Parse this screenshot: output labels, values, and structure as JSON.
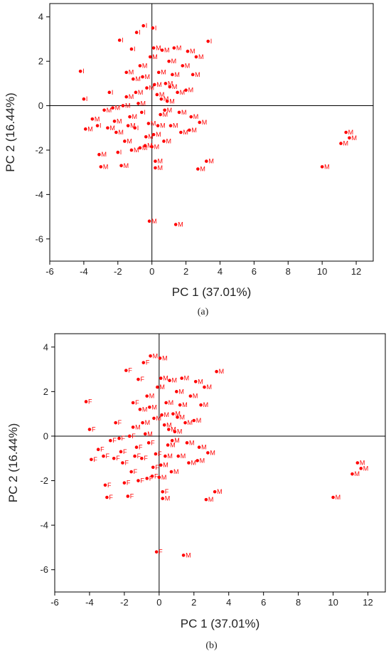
{
  "colors": {
    "marker": "#ff0000",
    "axis": "#000000"
  },
  "chart_data": [
    {
      "type": "scatter",
      "panel_label": "(a)",
      "xlabel": "PC 1 (37.01%)",
      "ylabel": "PC 2 (16.44%)",
      "xlim": [
        -6,
        13
      ],
      "ylim": [
        -7,
        4.6
      ],
      "xticks": [
        -6,
        -4,
        -2,
        0,
        2,
        4,
        6,
        8,
        10,
        12
      ],
      "yticks": [
        -6,
        -4,
        -2,
        0,
        2,
        4
      ],
      "zero_lines": true,
      "points": [
        {
          "x": -4.2,
          "y": 1.55,
          "label": "I"
        },
        {
          "x": -4.0,
          "y": 0.3,
          "label": "I"
        },
        {
          "x": -3.9,
          "y": -1.05,
          "label": "M"
        },
        {
          "x": -3.1,
          "y": -2.2,
          "label": "M"
        },
        {
          "x": -3.0,
          "y": -2.75,
          "label": "M"
        },
        {
          "x": -3.5,
          "y": -0.6,
          "label": "M"
        },
        {
          "x": -3.2,
          "y": -0.9,
          "label": "I"
        },
        {
          "x": -2.8,
          "y": -0.2,
          "label": "M"
        },
        {
          "x": -2.5,
          "y": 0.6,
          "label": "I"
        },
        {
          "x": -2.3,
          "y": -0.1,
          "label": "M"
        },
        {
          "x": -2.1,
          "y": -1.2,
          "label": "M"
        },
        {
          "x": -2.0,
          "y": -2.1,
          "label": "I"
        },
        {
          "x": -1.8,
          "y": -2.7,
          "label": "M"
        },
        {
          "x": -1.9,
          "y": 2.95,
          "label": "I"
        },
        {
          "x": -1.6,
          "y": -1.6,
          "label": "M"
        },
        {
          "x": -1.5,
          "y": 0.4,
          "label": "M"
        },
        {
          "x": -1.3,
          "y": -0.5,
          "label": "M"
        },
        {
          "x": -1.2,
          "y": 2.55,
          "label": "I"
        },
        {
          "x": -1.1,
          "y": 1.2,
          "label": "M"
        },
        {
          "x": -1.0,
          "y": -1.0,
          "label": "I"
        },
        {
          "x": -0.9,
          "y": 3.3,
          "label": "I"
        },
        {
          "x": -0.8,
          "y": 0.1,
          "label": "M"
        },
        {
          "x": -0.7,
          "y": 1.8,
          "label": "M"
        },
        {
          "x": -0.6,
          "y": -0.3,
          "label": "I"
        },
        {
          "x": -0.5,
          "y": 3.6,
          "label": "I"
        },
        {
          "x": -0.4,
          "y": -1.8,
          "label": "M"
        },
        {
          "x": -0.3,
          "y": 0.8,
          "label": "M"
        },
        {
          "x": -0.2,
          "y": -0.8,
          "label": "M"
        },
        {
          "x": -0.1,
          "y": 2.2,
          "label": "M"
        },
        {
          "x": -0.15,
          "y": -5.2,
          "label": "M"
        },
        {
          "x": 0.05,
          "y": 3.5,
          "label": "I"
        },
        {
          "x": 0.1,
          "y": -1.3,
          "label": "M"
        },
        {
          "x": 0.2,
          "y": -2.5,
          "label": "M"
        },
        {
          "x": 0.2,
          "y": -2.8,
          "label": "M"
        },
        {
          "x": 0.3,
          "y": 0.5,
          "label": "M"
        },
        {
          "x": 0.4,
          "y": 1.5,
          "label": "M"
        },
        {
          "x": 0.5,
          "y": -0.4,
          "label": "M"
        },
        {
          "x": 0.6,
          "y": 2.5,
          "label": "M"
        },
        {
          "x": 0.7,
          "y": -1.6,
          "label": "M"
        },
        {
          "x": 0.8,
          "y": 1.0,
          "label": "M"
        },
        {
          "x": 0.9,
          "y": 0.2,
          "label": "M"
        },
        {
          "x": 1.0,
          "y": 2.0,
          "label": "M"
        },
        {
          "x": 1.1,
          "y": -0.9,
          "label": "M"
        },
        {
          "x": 1.2,
          "y": 1.4,
          "label": "M"
        },
        {
          "x": 1.3,
          "y": 2.6,
          "label": "M"
        },
        {
          "x": 1.4,
          "y": -5.35,
          "label": "M"
        },
        {
          "x": 1.5,
          "y": 0.6,
          "label": "M"
        },
        {
          "x": 1.6,
          "y": -0.3,
          "label": "M"
        },
        {
          "x": 1.8,
          "y": 1.8,
          "label": "M"
        },
        {
          "x": 2.0,
          "y": 0.7,
          "label": "M"
        },
        {
          "x": 2.1,
          "y": 2.45,
          "label": "M"
        },
        {
          "x": 2.2,
          "y": -1.1,
          "label": "M"
        },
        {
          "x": 2.3,
          "y": -0.5,
          "label": "M"
        },
        {
          "x": 2.4,
          "y": 1.4,
          "label": "M"
        },
        {
          "x": 2.6,
          "y": 2.2,
          "label": "M"
        },
        {
          "x": 2.7,
          "y": -2.85,
          "label": "M"
        },
        {
          "x": 2.8,
          "y": -0.75,
          "label": "M"
        },
        {
          "x": 3.2,
          "y": -2.5,
          "label": "M"
        },
        {
          "x": 3.3,
          "y": 2.9,
          "label": "I"
        },
        {
          "x": 10.0,
          "y": -2.75,
          "label": "M"
        },
        {
          "x": 11.1,
          "y": -1.7,
          "label": "M"
        },
        {
          "x": 11.4,
          "y": -1.2,
          "label": "M"
        },
        {
          "x": 11.6,
          "y": -1.45,
          "label": "M"
        },
        {
          "x": -1.7,
          "y": 0.0,
          "label": "M"
        },
        {
          "x": -1.4,
          "y": -0.9,
          "label": "M"
        },
        {
          "x": -0.95,
          "y": 0.6,
          "label": "M"
        },
        {
          "x": -0.55,
          "y": 1.3,
          "label": "M"
        },
        {
          "x": -0.35,
          "y": -1.4,
          "label": "M"
        },
        {
          "x": 0.15,
          "y": 0.95,
          "label": "M"
        },
        {
          "x": 0.35,
          "y": -0.9,
          "label": "M"
        },
        {
          "x": 0.55,
          "y": 0.3,
          "label": "M"
        },
        {
          "x": 0.75,
          "y": -0.2,
          "label": "M"
        },
        {
          "x": 1.05,
          "y": 0.85,
          "label": "M"
        },
        {
          "x": -2.2,
          "y": -0.7,
          "label": "M"
        },
        {
          "x": -2.6,
          "y": -1.0,
          "label": "M"
        },
        {
          "x": -1.2,
          "y": -2.0,
          "label": "M"
        },
        {
          "x": -0.7,
          "y": -1.9,
          "label": "M"
        },
        {
          "x": 0.0,
          "y": -1.85,
          "label": "M"
        },
        {
          "x": 1.7,
          "y": -1.2,
          "label": "M"
        },
        {
          "x": -1.5,
          "y": 1.5,
          "label": "M"
        },
        {
          "x": 0.1,
          "y": 2.6,
          "label": "M"
        }
      ]
    },
    {
      "type": "scatter",
      "panel_label": "(b)",
      "xlabel": "PC 1 (37.01%)",
      "ylabel": "PC 2 (16.44%)",
      "xlim": [
        -6,
        13
      ],
      "ylim": [
        -7,
        4.6
      ],
      "xticks": [
        -6,
        -4,
        -2,
        0,
        2,
        4,
        6,
        8,
        10,
        12
      ],
      "yticks": [
        -6,
        -4,
        -2,
        0,
        2,
        4
      ],
      "zero_lines": true,
      "points": [
        {
          "x": -4.2,
          "y": 1.55,
          "label": "F"
        },
        {
          "x": -4.0,
          "y": 0.3,
          "label": "F"
        },
        {
          "x": -3.9,
          "y": -1.05,
          "label": "F"
        },
        {
          "x": -3.1,
          "y": -2.2,
          "label": "F"
        },
        {
          "x": -3.0,
          "y": -2.75,
          "label": "F"
        },
        {
          "x": -3.5,
          "y": -0.6,
          "label": "F"
        },
        {
          "x": -3.2,
          "y": -0.9,
          "label": "F"
        },
        {
          "x": -2.8,
          "y": -0.2,
          "label": "F"
        },
        {
          "x": -2.5,
          "y": 0.6,
          "label": "F"
        },
        {
          "x": -2.3,
          "y": -0.1,
          "label": "F"
        },
        {
          "x": -2.1,
          "y": -1.2,
          "label": "F"
        },
        {
          "x": -2.0,
          "y": -2.1,
          "label": "F"
        },
        {
          "x": -1.8,
          "y": -2.7,
          "label": "F"
        },
        {
          "x": -1.9,
          "y": 2.95,
          "label": "F"
        },
        {
          "x": -1.6,
          "y": -1.6,
          "label": "F"
        },
        {
          "x": -1.5,
          "y": 0.4,
          "label": "M"
        },
        {
          "x": -1.3,
          "y": -0.5,
          "label": "F"
        },
        {
          "x": -1.2,
          "y": 2.55,
          "label": "F"
        },
        {
          "x": -1.1,
          "y": 1.2,
          "label": "M"
        },
        {
          "x": -1.0,
          "y": -1.0,
          "label": "F"
        },
        {
          "x": -0.9,
          "y": 3.3,
          "label": "F"
        },
        {
          "x": -0.8,
          "y": 0.1,
          "label": "M"
        },
        {
          "x": -0.7,
          "y": 1.8,
          "label": "M"
        },
        {
          "x": -0.6,
          "y": -0.3,
          "label": "F"
        },
        {
          "x": -0.5,
          "y": 3.6,
          "label": "M"
        },
        {
          "x": -0.4,
          "y": -1.8,
          "label": "F"
        },
        {
          "x": -0.3,
          "y": 0.8,
          "label": "M"
        },
        {
          "x": -0.2,
          "y": -0.8,
          "label": "F"
        },
        {
          "x": -0.1,
          "y": 2.2,
          "label": "M"
        },
        {
          "x": -0.15,
          "y": -5.2,
          "label": "F"
        },
        {
          "x": 0.05,
          "y": 3.5,
          "label": "M"
        },
        {
          "x": 0.1,
          "y": -1.3,
          "label": "M"
        },
        {
          "x": 0.2,
          "y": -2.5,
          "label": "F"
        },
        {
          "x": 0.2,
          "y": -2.8,
          "label": "M"
        },
        {
          "x": 0.3,
          "y": 0.5,
          "label": "M"
        },
        {
          "x": 0.4,
          "y": 1.5,
          "label": "M"
        },
        {
          "x": 0.5,
          "y": -0.4,
          "label": "M"
        },
        {
          "x": 0.6,
          "y": 2.5,
          "label": "M"
        },
        {
          "x": 0.7,
          "y": -1.6,
          "label": "M"
        },
        {
          "x": 0.8,
          "y": 1.0,
          "label": "M"
        },
        {
          "x": 0.9,
          "y": 0.2,
          "label": "M"
        },
        {
          "x": 1.0,
          "y": 2.0,
          "label": "M"
        },
        {
          "x": 1.1,
          "y": -0.9,
          "label": "M"
        },
        {
          "x": 1.2,
          "y": 1.4,
          "label": "M"
        },
        {
          "x": 1.3,
          "y": 2.6,
          "label": "M"
        },
        {
          "x": 1.4,
          "y": -5.35,
          "label": "M"
        },
        {
          "x": 1.5,
          "y": 0.6,
          "label": "M"
        },
        {
          "x": 1.6,
          "y": -0.3,
          "label": "M"
        },
        {
          "x": 1.8,
          "y": 1.8,
          "label": "M"
        },
        {
          "x": 2.0,
          "y": 0.7,
          "label": "M"
        },
        {
          "x": 2.1,
          "y": 2.45,
          "label": "M"
        },
        {
          "x": 2.2,
          "y": -1.1,
          "label": "M"
        },
        {
          "x": 2.3,
          "y": -0.5,
          "label": "M"
        },
        {
          "x": 2.4,
          "y": 1.4,
          "label": "M"
        },
        {
          "x": 2.6,
          "y": 2.2,
          "label": "M"
        },
        {
          "x": 2.7,
          "y": -2.85,
          "label": "M"
        },
        {
          "x": 2.8,
          "y": -0.75,
          "label": "M"
        },
        {
          "x": 3.2,
          "y": -2.5,
          "label": "M"
        },
        {
          "x": 3.3,
          "y": 2.9,
          "label": "M"
        },
        {
          "x": 10.0,
          "y": -2.75,
          "label": "M"
        },
        {
          "x": 11.1,
          "y": -1.7,
          "label": "M"
        },
        {
          "x": 11.4,
          "y": -1.2,
          "label": "M"
        },
        {
          "x": 11.6,
          "y": -1.45,
          "label": "M"
        },
        {
          "x": -1.7,
          "y": 0.0,
          "label": "F"
        },
        {
          "x": -1.4,
          "y": -0.9,
          "label": "F"
        },
        {
          "x": -0.95,
          "y": 0.6,
          "label": "M"
        },
        {
          "x": -0.55,
          "y": 1.3,
          "label": "M"
        },
        {
          "x": -0.35,
          "y": -1.4,
          "label": "F"
        },
        {
          "x": 0.15,
          "y": 0.95,
          "label": "M"
        },
        {
          "x": 0.35,
          "y": -0.9,
          "label": "M"
        },
        {
          "x": 0.55,
          "y": 0.3,
          "label": "M"
        },
        {
          "x": 0.75,
          "y": -0.2,
          "label": "M"
        },
        {
          "x": 1.05,
          "y": 0.85,
          "label": "M"
        },
        {
          "x": -2.2,
          "y": -0.7,
          "label": "F"
        },
        {
          "x": -2.6,
          "y": -1.0,
          "label": "F"
        },
        {
          "x": -1.2,
          "y": -2.0,
          "label": "F"
        },
        {
          "x": -0.7,
          "y": -1.9,
          "label": "F"
        },
        {
          "x": 0.0,
          "y": -1.85,
          "label": "M"
        },
        {
          "x": 1.7,
          "y": -1.2,
          "label": "M"
        },
        {
          "x": -1.5,
          "y": 1.5,
          "label": "F"
        },
        {
          "x": 0.1,
          "y": 2.6,
          "label": "M"
        }
      ]
    }
  ]
}
